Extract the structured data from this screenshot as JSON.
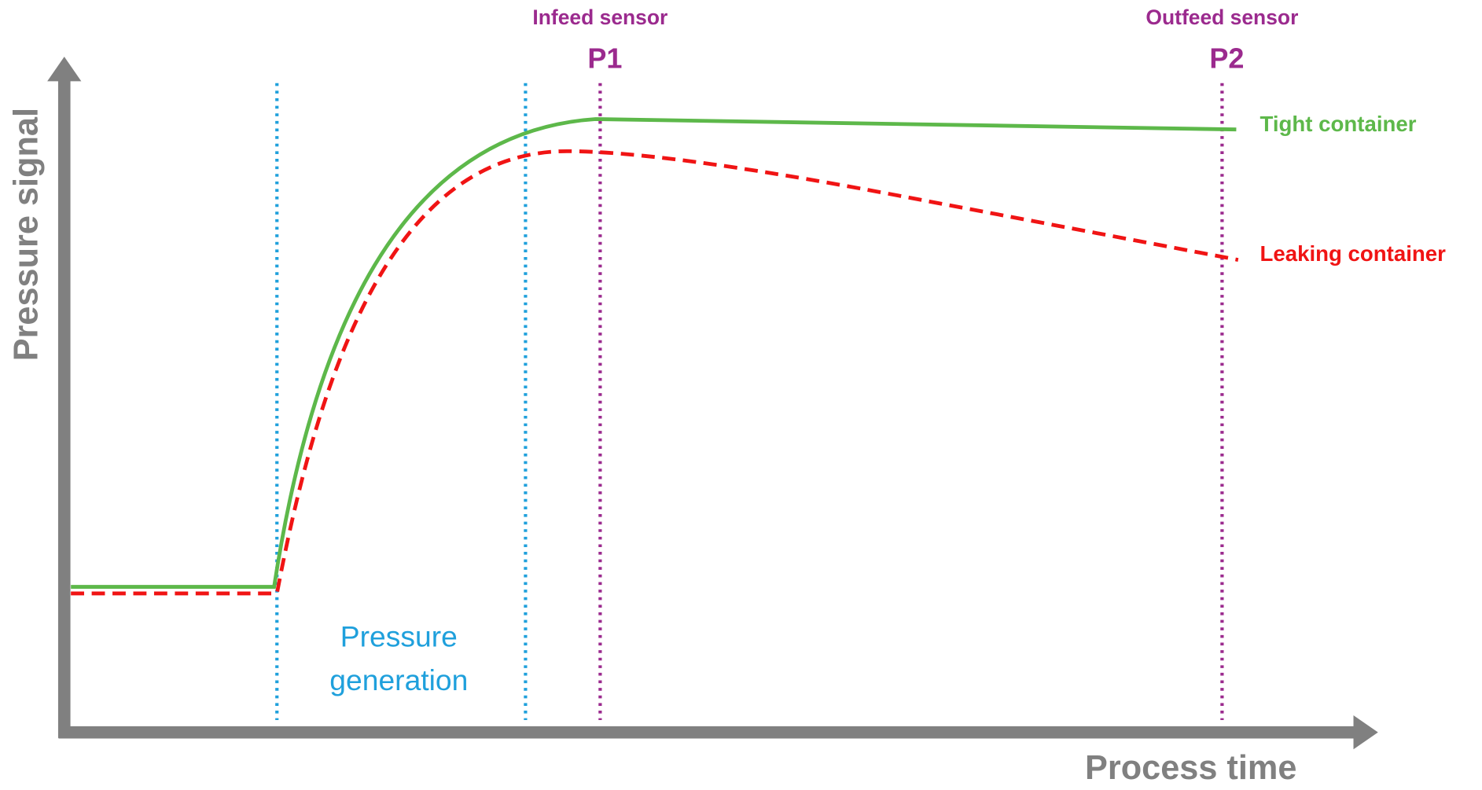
{
  "axes": {
    "y_label": "Pressure signal",
    "x_label": "Process time"
  },
  "sensors": [
    {
      "name": "Infeed sensor",
      "label": "P1"
    },
    {
      "name": "Outfeed sensor",
      "label": "P2"
    }
  ],
  "phase": {
    "lines": [
      "Pressure",
      "generation"
    ]
  },
  "curves": [
    {
      "label": "Tight container"
    },
    {
      "label": "Leaking container"
    }
  ]
}
